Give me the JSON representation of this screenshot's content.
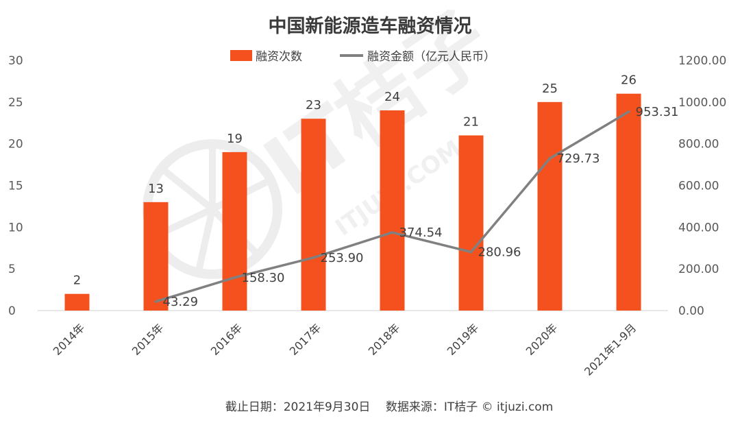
{
  "chart_data": {
    "type": "bar",
    "title": "中国新能源造车融资情况",
    "categories": [
      "2014年",
      "2015年",
      "2016年",
      "2017年",
      "2018年",
      "2019年",
      "2020年",
      "2021年1-9月"
    ],
    "series": [
      {
        "name": "融资次数",
        "type": "bar",
        "axis": "left",
        "color": "#F4511E",
        "values": [
          2,
          13,
          19,
          23,
          24,
          21,
          25,
          26
        ],
        "labels": [
          "2",
          "13",
          "19",
          "23",
          "24",
          "21",
          "25",
          "26"
        ]
      },
      {
        "name": "融资金额（亿元人民币）",
        "type": "line",
        "axis": "right",
        "color": "#808080",
        "values": [
          null,
          43.29,
          158.3,
          253.9,
          374.54,
          280.96,
          729.73,
          953.31
        ],
        "labels": [
          "",
          "43.29",
          "158.30",
          "253.90",
          "374.54",
          "280.96",
          "729.73",
          "953.31"
        ]
      }
    ],
    "left_axis": {
      "ylim": [
        0,
        30
      ],
      "ticks": [
        "0",
        "5",
        "10",
        "15",
        "20",
        "25",
        "30"
      ]
    },
    "right_axis": {
      "ylim": [
        0,
        1200
      ],
      "ticks": [
        "0.00",
        "200.00",
        "400.00",
        "600.00",
        "800.00",
        "1000.00",
        "1200.00"
      ]
    },
    "legend_position": "top-center",
    "grid": false
  },
  "footer": {
    "text": "截止日期：2021年9月30日　 数据来源：IT桔子 © itjuzi.com"
  },
  "watermark": {
    "logo_text": "IT桔子",
    "url_text": "ITJUZI.COM"
  }
}
